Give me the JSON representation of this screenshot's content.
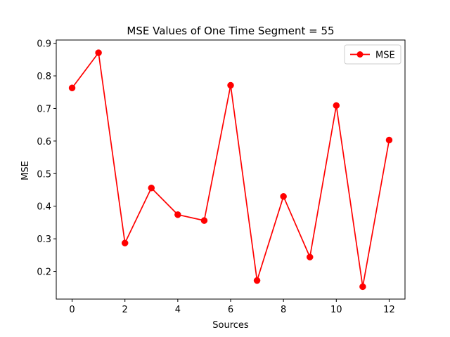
{
  "chart_data": {
    "type": "line",
    "title": "MSE Values of One Time Segment = 55",
    "xlabel": "Sources",
    "ylabel": "MSE",
    "xlim": [
      -0.6,
      12.6
    ],
    "ylim": [
      0.115,
      0.91
    ],
    "xticks": [
      0,
      2,
      4,
      6,
      8,
      10,
      12
    ],
    "yticks": [
      0.2,
      0.3,
      0.4,
      0.5,
      0.6,
      0.7,
      0.8,
      0.9
    ],
    "grid": false,
    "legend_position": "top-right",
    "series": [
      {
        "name": "MSE",
        "color": "#ff0000",
        "marker": "circle",
        "x": [
          0,
          1,
          2,
          3,
          4,
          5,
          6,
          7,
          8,
          9,
          10,
          11,
          12
        ],
        "y": [
          0.763,
          0.871,
          0.287,
          0.456,
          0.374,
          0.356,
          0.771,
          0.172,
          0.43,
          0.244,
          0.709,
          0.153,
          0.603
        ]
      }
    ]
  }
}
